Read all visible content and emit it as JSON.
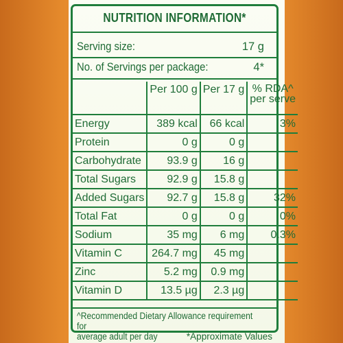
{
  "title": "NUTRITION INFORMATION*",
  "serving": {
    "size_label": "Serving size:",
    "size_value": "17 g",
    "servings_label": "No. of Servings per package:",
    "servings_value": "4*"
  },
  "table": {
    "headers": [
      "",
      "Per 100 g",
      "Per 17 g",
      "% RDA^ per serve"
    ],
    "rda_header_line1": "% RDA^",
    "rda_header_line2": "per serve",
    "rows": [
      {
        "name": "Energy",
        "per100": "389 kcal",
        "per17": "66 kcal",
        "rda": "3%"
      },
      {
        "name": "Protein",
        "per100": "0 g",
        "per17": "0 g",
        "rda": ""
      },
      {
        "name": "Carbohydrate",
        "per100": "93.9 g",
        "per17": "16 g",
        "rda": ""
      },
      {
        "name": "Total Sugars",
        "per100": "92.9 g",
        "per17": "15.8 g",
        "rda": ""
      },
      {
        "name": "Added Sugars",
        "per100": "92.7 g",
        "per17": "15.8 g",
        "rda": "32%"
      },
      {
        "name": "Total Fat",
        "per100": "0 g",
        "per17": "0 g",
        "rda": "0%"
      },
      {
        "name": "Sodium",
        "per100": "35 mg",
        "per17": "6 mg",
        "rda": "0.3%"
      },
      {
        "name": "Vitamin C",
        "per100": "264.7 mg",
        "per17": "45 mg",
        "rda": ""
      },
      {
        "name": "Zinc",
        "per100": "5.2 mg",
        "per17": "0.9 mg",
        "rda": ""
      },
      {
        "name": "Vitamin D",
        "per100": "13.5 µg",
        "per17": "2.3 µg",
        "rda": ""
      }
    ]
  },
  "footnote": {
    "line1": "^Recommended Dietary Allowance requirement for",
    "line2_left": "average adult per day",
    "line2_right": "*Approximate Values"
  },
  "colors": {
    "text_green": "#1f6b35",
    "border_green": "#1f7d3b",
    "background_orange": "#f6a640",
    "panel_cream": "#fbfdf4"
  }
}
